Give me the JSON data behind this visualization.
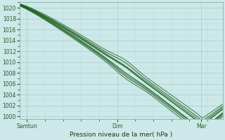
{
  "xlabel": "Pression niveau de la mer( hPa )",
  "xlim": [
    0,
    1
  ],
  "ylim": [
    999.5,
    1021
  ],
  "yticks": [
    1000,
    1002,
    1004,
    1006,
    1008,
    1010,
    1012,
    1014,
    1016,
    1018,
    1020
  ],
  "xtick_labels": [
    "Samtun",
    "Dim",
    "Mar"
  ],
  "xtick_positions": [
    0.035,
    0.48,
    0.895
  ],
  "bg_color": "#cce8e8",
  "grid_color_major": "#aacccc",
  "grid_color_minor": "#bbdddd",
  "line_color": "#1a5c1a",
  "n_lines": 8,
  "figsize": [
    3.2,
    2.0
  ],
  "dpi": 100
}
